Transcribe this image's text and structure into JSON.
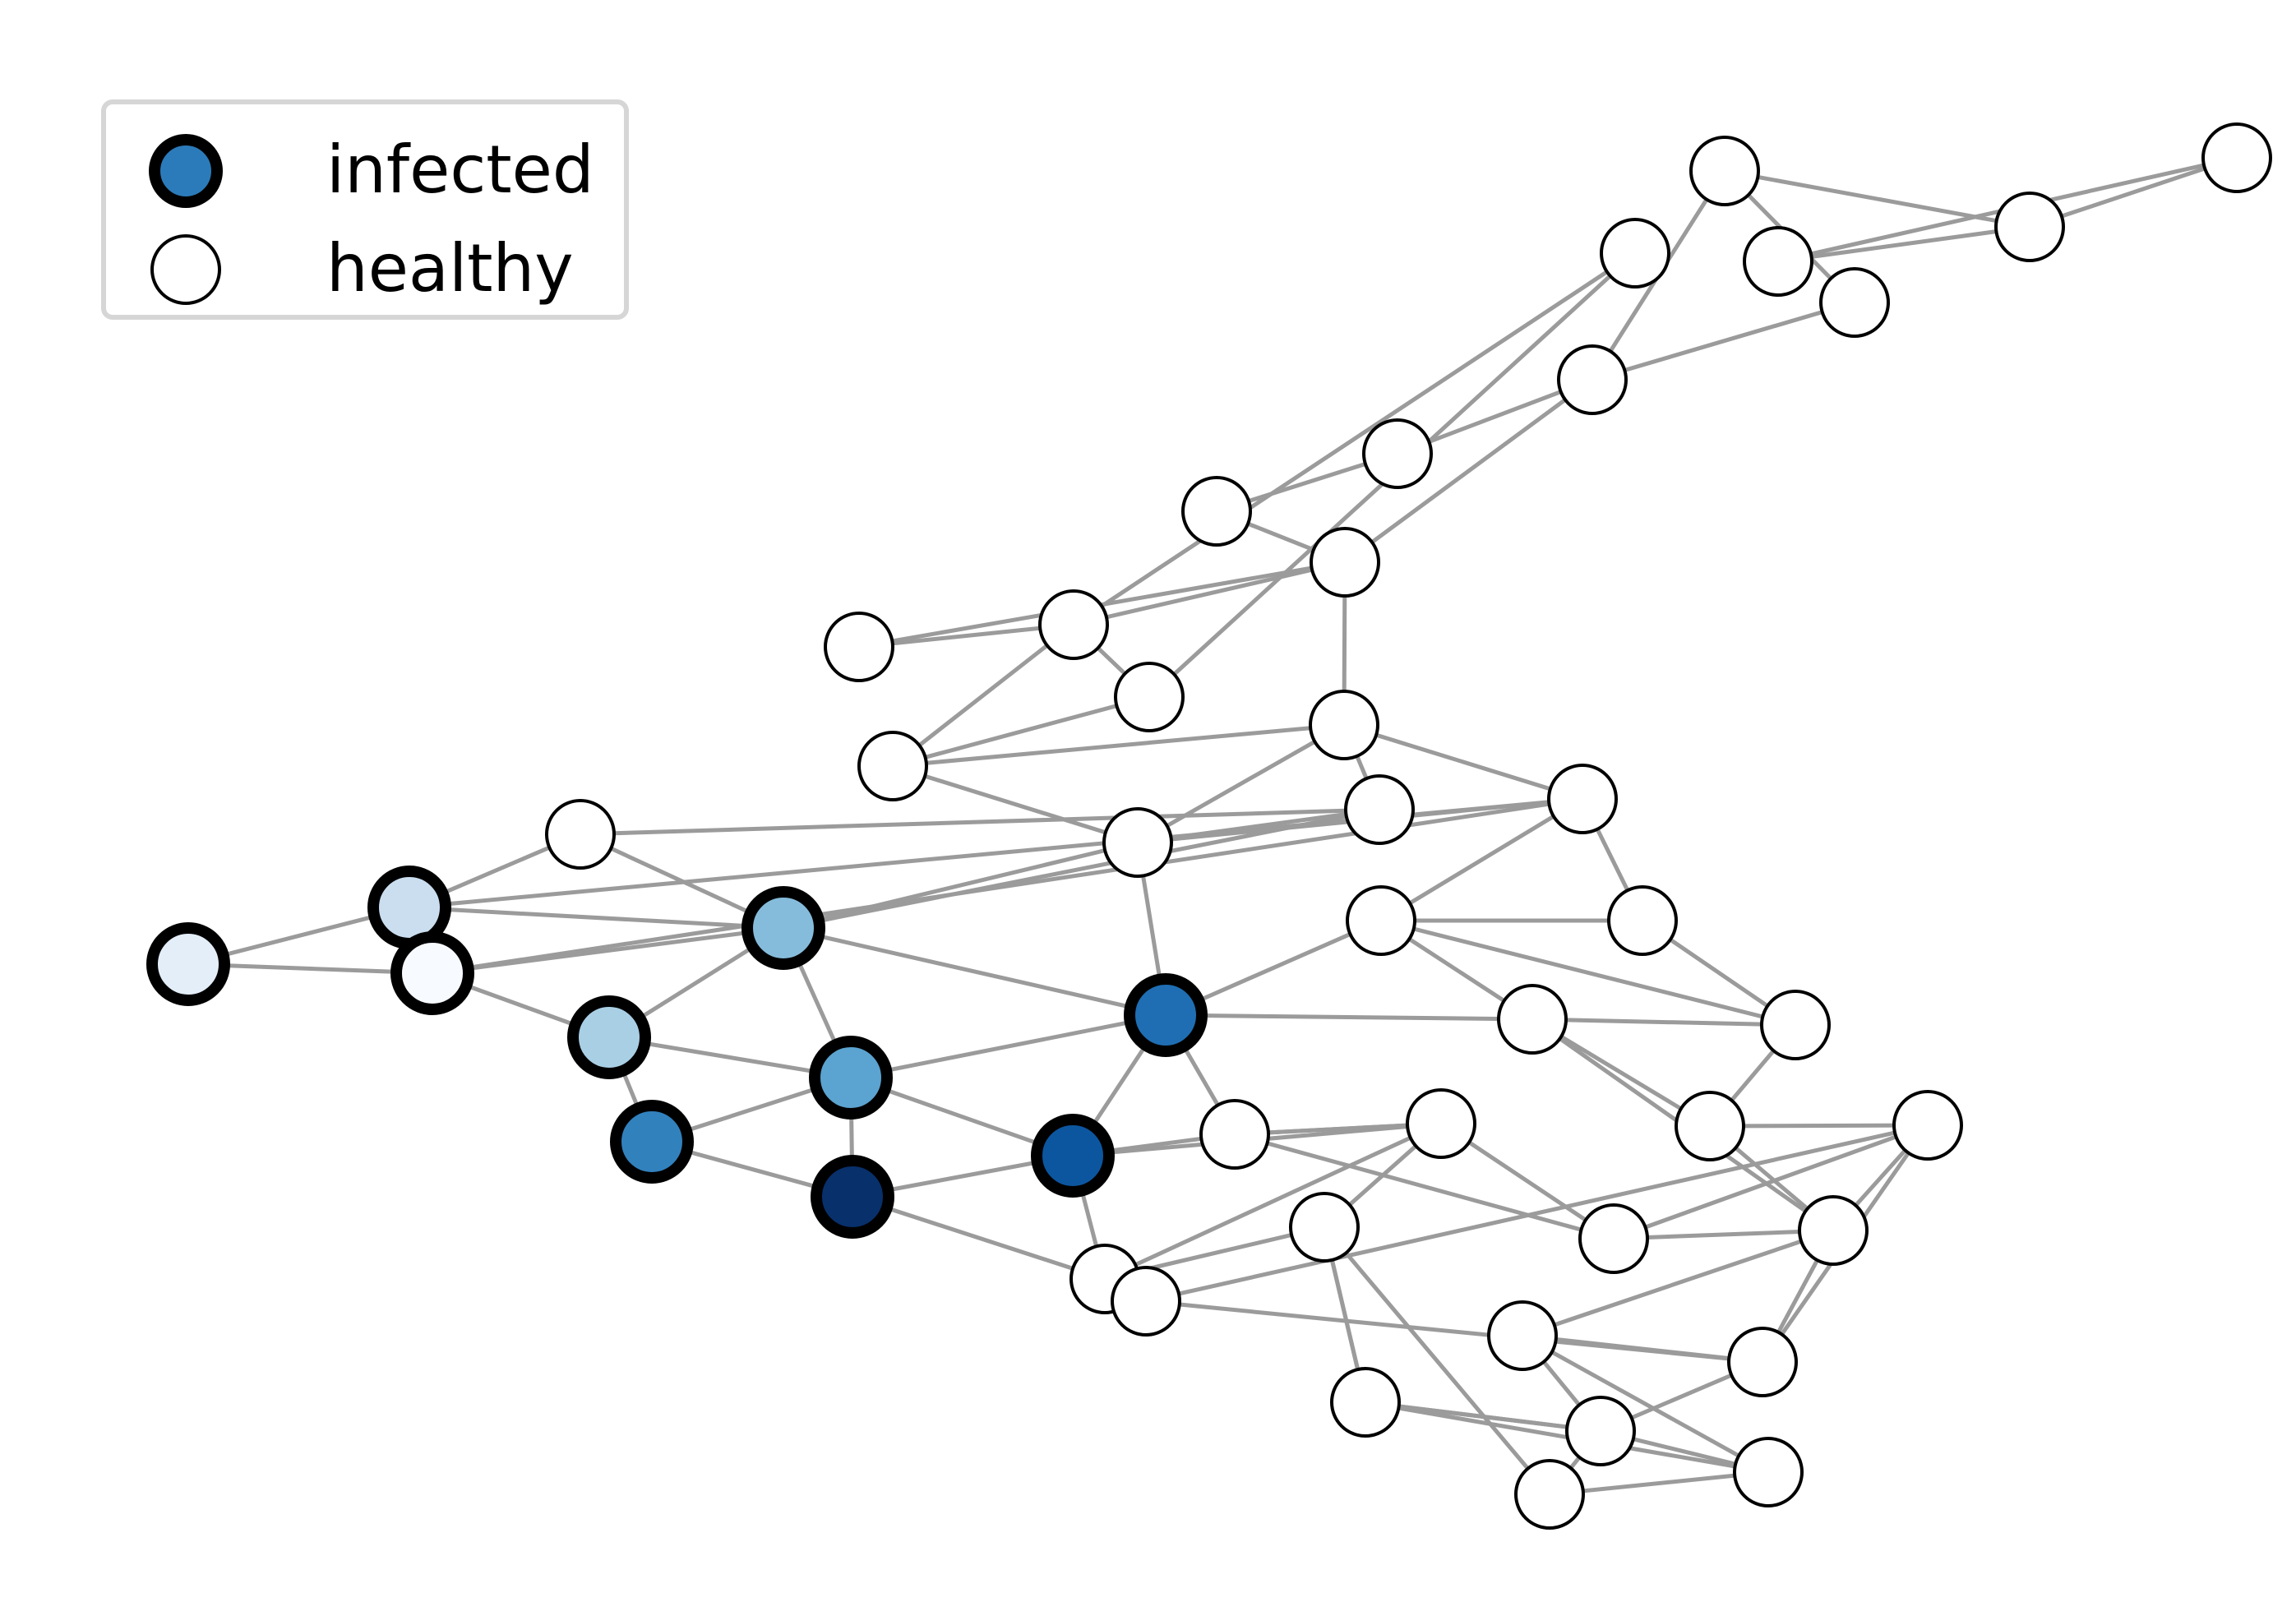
{
  "legend": {
    "infected_label": "infected",
    "healthy_label": "healthy"
  },
  "colors": {
    "edge": "#9b9b9b",
    "node_outline": "#000000",
    "healthy_fill": "#ffffff",
    "legend_infected_fill": "#2b7bba",
    "legend_border": "#d6d6d6"
  },
  "graph": {
    "nodes": [
      {
        "id": "n0",
        "state": "healthy"
      },
      {
        "id": "n1",
        "state": "healthy"
      },
      {
        "id": "n2",
        "state": "healthy"
      },
      {
        "id": "n3",
        "state": "healthy"
      },
      {
        "id": "n4",
        "state": "healthy"
      },
      {
        "id": "n5",
        "state": "healthy"
      },
      {
        "id": "n6",
        "state": "healthy"
      },
      {
        "id": "n7",
        "state": "healthy"
      },
      {
        "id": "n8",
        "state": "healthy"
      },
      {
        "id": "n9",
        "state": "healthy"
      },
      {
        "id": "n10",
        "state": "healthy"
      },
      {
        "id": "n11",
        "state": "healthy"
      },
      {
        "id": "n12",
        "state": "healthy"
      },
      {
        "id": "n13",
        "state": "healthy"
      },
      {
        "id": "n14",
        "state": "healthy"
      },
      {
        "id": "n15",
        "state": "healthy"
      },
      {
        "id": "n16",
        "state": "healthy"
      },
      {
        "id": "n17",
        "state": "healthy"
      },
      {
        "id": "n18",
        "state": "healthy"
      },
      {
        "id": "n19",
        "state": "infected",
        "fill": "#cadef0"
      },
      {
        "id": "n20",
        "state": "infected",
        "fill": "#e3eef9"
      },
      {
        "id": "n21",
        "state": "infected",
        "fill": "#f7fbff"
      },
      {
        "id": "n22",
        "state": "infected",
        "fill": "#85bcdc"
      },
      {
        "id": "n23",
        "state": "infected",
        "fill": "#a9cfe5"
      },
      {
        "id": "n24",
        "state": "infected",
        "fill": "#5ba3d0"
      },
      {
        "id": "n25",
        "state": "infected",
        "fill": "#3181bd"
      },
      {
        "id": "n26",
        "state": "infected",
        "fill": "#08306b"
      },
      {
        "id": "n27",
        "state": "infected",
        "fill": "#1f6eb3"
      },
      {
        "id": "n28",
        "state": "infected",
        "fill": "#0c56a0"
      },
      {
        "id": "n29",
        "state": "healthy"
      },
      {
        "id": "n30",
        "state": "healthy"
      },
      {
        "id": "n31",
        "state": "healthy"
      },
      {
        "id": "n32",
        "state": "healthy"
      },
      {
        "id": "n33",
        "state": "healthy"
      },
      {
        "id": "n34",
        "state": "healthy"
      },
      {
        "id": "n35",
        "state": "healthy"
      },
      {
        "id": "n36",
        "state": "healthy"
      },
      {
        "id": "n37",
        "state": "healthy"
      },
      {
        "id": "n38",
        "state": "healthy"
      },
      {
        "id": "n39",
        "state": "healthy"
      },
      {
        "id": "n40",
        "state": "healthy"
      },
      {
        "id": "n41",
        "state": "healthy"
      },
      {
        "id": "n42",
        "state": "healthy"
      },
      {
        "id": "n43",
        "state": "healthy"
      },
      {
        "id": "n44",
        "state": "healthy"
      },
      {
        "id": "n45",
        "state": "healthy"
      },
      {
        "id": "n46",
        "state": "healthy"
      },
      {
        "id": "n47",
        "state": "healthy"
      }
    ],
    "edges": [
      [
        "n0",
        "n4"
      ],
      [
        "n0",
        "n1"
      ],
      [
        "n1",
        "n4"
      ],
      [
        "n1",
        "n2"
      ],
      [
        "n2",
        "n3"
      ],
      [
        "n2",
        "n5"
      ],
      [
        "n3",
        "n5"
      ],
      [
        "n5",
        "n6"
      ],
      [
        "n6",
        "n7"
      ],
      [
        "n5",
        "n9"
      ],
      [
        "n7",
        "n9"
      ],
      [
        "n8",
        "n9"
      ],
      [
        "n8",
        "n10"
      ],
      [
        "n9",
        "n10"
      ],
      [
        "n9",
        "n13"
      ],
      [
        "n10",
        "n11"
      ],
      [
        "n10",
        "n12"
      ],
      [
        "n11",
        "n12"
      ],
      [
        "n11",
        "n14"
      ],
      [
        "n10",
        "n14"
      ],
      [
        "n12",
        "n13"
      ],
      [
        "n12",
        "n16"
      ],
      [
        "n13",
        "n15"
      ],
      [
        "n13",
        "n16"
      ],
      [
        "n15",
        "n16"
      ],
      [
        "n15",
        "n22"
      ],
      [
        "n16",
        "n22"
      ],
      [
        "n13",
        "n17"
      ],
      [
        "n15",
        "n18"
      ],
      [
        "n18",
        "n22"
      ],
      [
        "n17",
        "n19"
      ],
      [
        "n17",
        "n21"
      ],
      [
        "n18",
        "n19"
      ],
      [
        "n19",
        "n22"
      ],
      [
        "n19",
        "n20"
      ],
      [
        "n20",
        "n21"
      ],
      [
        "n21",
        "n22"
      ],
      [
        "n21",
        "n23"
      ],
      [
        "n22",
        "n23"
      ],
      [
        "n22",
        "n24"
      ],
      [
        "n22",
        "n27"
      ],
      [
        "n23",
        "n24"
      ],
      [
        "n23",
        "n25"
      ],
      [
        "n24",
        "n25"
      ],
      [
        "n24",
        "n26"
      ],
      [
        "n24",
        "n27"
      ],
      [
        "n24",
        "n28"
      ],
      [
        "n25",
        "n26"
      ],
      [
        "n26",
        "n28"
      ],
      [
        "n26",
        "n33"
      ],
      [
        "n27",
        "n28"
      ],
      [
        "n27",
        "n29"
      ],
      [
        "n27",
        "n30"
      ],
      [
        "n27",
        "n34"
      ],
      [
        "n16",
        "n27"
      ],
      [
        "n28",
        "n29"
      ],
      [
        "n28",
        "n31"
      ],
      [
        "n28",
        "n33"
      ],
      [
        "n29",
        "n31"
      ],
      [
        "n33",
        "n31"
      ],
      [
        "n33",
        "n36"
      ],
      [
        "n16",
        "n17"
      ],
      [
        "n17",
        "n32"
      ],
      [
        "n17",
        "n30"
      ],
      [
        "n30",
        "n32"
      ],
      [
        "n32",
        "n35"
      ],
      [
        "n30",
        "n35"
      ],
      [
        "n30",
        "n34"
      ],
      [
        "n34",
        "n35"
      ],
      [
        "n34",
        "n37"
      ],
      [
        "n34",
        "n40"
      ],
      [
        "n35",
        "n37"
      ],
      [
        "n31",
        "n29"
      ],
      [
        "n31",
        "n36"
      ],
      [
        "n31",
        "n38"
      ],
      [
        "n29",
        "n38"
      ],
      [
        "n38",
        "n39"
      ],
      [
        "n38",
        "n40"
      ],
      [
        "n40",
        "n39"
      ],
      [
        "n40",
        "n37"
      ],
      [
        "n39",
        "n41"
      ],
      [
        "n39",
        "n37"
      ],
      [
        "n39",
        "n42"
      ],
      [
        "n40",
        "n43"
      ],
      [
        "n40",
        "n42"
      ],
      [
        "n42",
        "n43"
      ],
      [
        "n42",
        "n45"
      ],
      [
        "n43",
        "n45"
      ],
      [
        "n44",
        "n45"
      ],
      [
        "n44",
        "n36"
      ],
      [
        "n43",
        "n47"
      ],
      [
        "n45",
        "n47"
      ],
      [
        "n45",
        "n46"
      ],
      [
        "n45",
        "n44"
      ],
      [
        "n36",
        "n44"
      ],
      [
        "n36",
        "n46"
      ],
      [
        "n46",
        "n47"
      ],
      [
        "n47",
        "n44"
      ],
      [
        "n41",
        "n42"
      ]
    ]
  }
}
